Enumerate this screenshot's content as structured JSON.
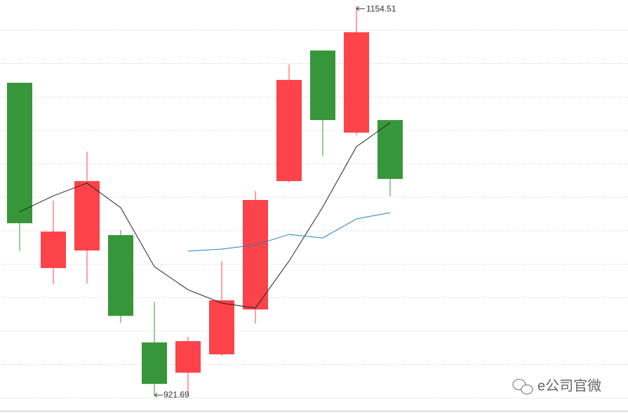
{
  "chart_data": {
    "type": "candlestick",
    "open": [
      1108.5,
      997.7,
      1008.2,
      1017.4,
      953.2,
      935.1,
      946.1,
      972.9,
      1049.7,
      1127.8,
      1078.7,
      1086.2
    ],
    "high": [
      1108.5,
      1038.0,
      1067.3,
      1020.3,
      977.5,
      956.5,
      1001.9,
      1043.8,
      1119.4,
      1127.8,
      1154.51,
      1086.2
    ],
    "low": [
      1007.8,
      988.0,
      988.4,
      964.9,
      921.69,
      922.1,
      945.2,
      964.5,
      1048.9,
      1064.4,
      1077.0,
      1040.5
    ],
    "close": [
      1024.5,
      1019.5,
      1049.7,
      969.1,
      928.4,
      954.0,
      978.4,
      1038.4,
      1110.2,
      1086.2,
      1138.7,
      1051.0
    ],
    "up_color": "#fc4349",
    "down_color": "#38963a",
    "series": [
      {
        "color": "#222222",
        "values": [
          1031.3,
          1040.9,
          1048.5,
          1033.8,
          998.5,
          984.7,
          976.7,
          973.8,
          1001.9,
          1034.2,
          1070.3,
          1084.6
        ]
      },
      {
        "color": "#1f7fc1",
        "values": [
          null,
          null,
          null,
          null,
          null,
          1007.8,
          1009.0,
          1011.5,
          1017.8,
          1015.7,
          1027.1,
          1030.8
        ]
      }
    ],
    "ylim": [
      912.5,
      1158
    ],
    "yticks": [
      920,
      940,
      960,
      980,
      1000,
      1020,
      1040,
      1060,
      1080,
      1100,
      1120,
      1140
    ],
    "grid": true,
    "watermark": "e公司官微"
  }
}
